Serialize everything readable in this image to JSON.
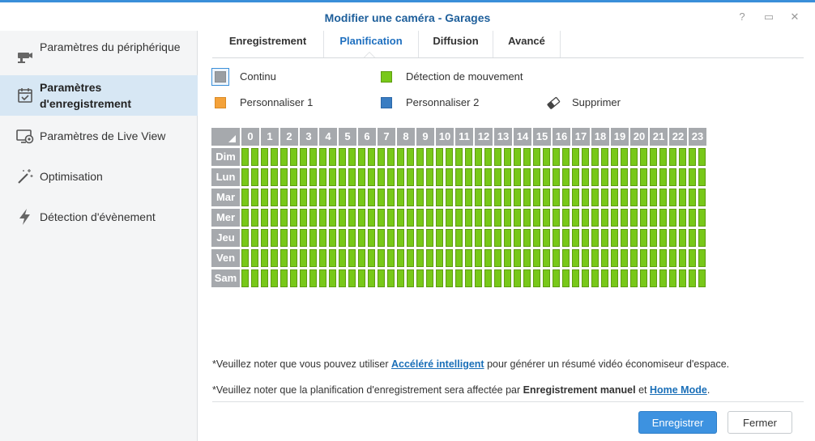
{
  "window": {
    "title": "Modifier une caméra - Garages",
    "controls": [
      "?",
      "▭",
      "✕"
    ]
  },
  "sidebar": {
    "items": [
      {
        "label": "Paramètres du périphérique",
        "icon": "camera-icon",
        "active": false
      },
      {
        "label": "Paramètres d'enregistrement",
        "icon": "calendar-check-icon",
        "active": true
      },
      {
        "label": "Paramètres de Live View",
        "icon": "monitor-icon",
        "active": false
      },
      {
        "label": "Optimisation",
        "icon": "magic-wand-icon",
        "active": false
      },
      {
        "label": "Détection d'évènement",
        "icon": "lightning-icon",
        "active": false
      }
    ]
  },
  "tabs": [
    {
      "label": "Enregistrement",
      "active": false
    },
    {
      "label": "Planification",
      "active": true
    },
    {
      "label": "Diffusion",
      "active": false
    },
    {
      "label": "Avancé",
      "active": false
    }
  ],
  "legend": [
    {
      "label": "Continu",
      "color": "#9a9ea3",
      "selected": true
    },
    {
      "label": "Détection de mouvement",
      "color": "#78c819"
    },
    {
      "label": "Personnaliser 1",
      "color": "#f4a23a"
    },
    {
      "label": "Personnaliser 2",
      "color": "#3a7dc2"
    },
    {
      "label": "Supprimer",
      "icon": "eraser-icon"
    }
  ],
  "schedule": {
    "hours": [
      "0",
      "1",
      "2",
      "3",
      "4",
      "5",
      "6",
      "7",
      "8",
      "9",
      "10",
      "11",
      "12",
      "13",
      "14",
      "15",
      "16",
      "17",
      "18",
      "19",
      "20",
      "21",
      "22",
      "23"
    ],
    "days": [
      "Dim",
      "Lun",
      "Mar",
      "Mer",
      "Jeu",
      "Ven",
      "Sam"
    ],
    "fill_color": "#78c819"
  },
  "notes": {
    "note1": {
      "prefix": "*Veuillez noter que vous pouvez utiliser ",
      "link": "Accéléré intelligent",
      "suffix": " pour générer un résumé vidéo économiseur d'espace."
    },
    "note2": {
      "prefix": "*Veuillez noter que la planification d'enregistrement sera affectée par ",
      "bold": "Enregistrement manuel",
      "mid": " et ",
      "link": "Home Mode",
      "suffix": "."
    }
  },
  "footer": {
    "save_label": "Enregistrer",
    "close_label": "Fermer"
  }
}
